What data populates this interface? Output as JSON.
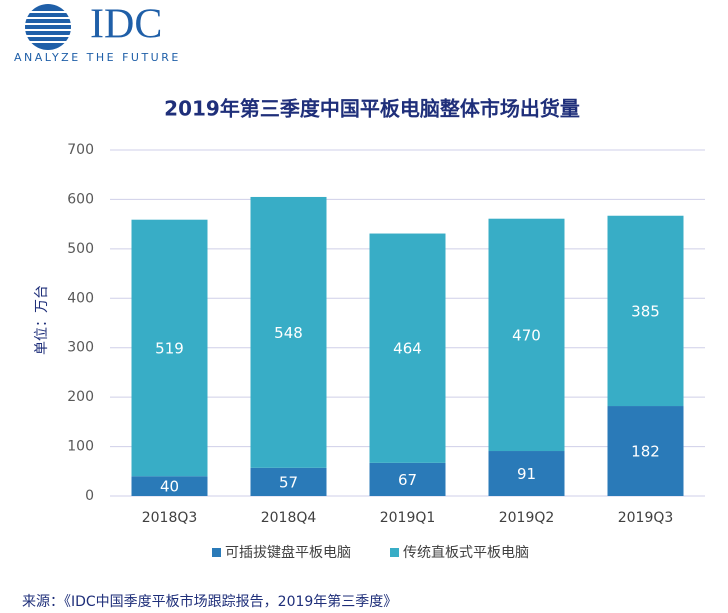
{
  "logo": {
    "name": "IDC",
    "tagline": "ANALYZE THE FUTURE"
  },
  "chart_data": {
    "type": "stacked-bar",
    "title": "2019年第三季度中国平板电脑整体市场出货量",
    "y_label": "单位：万台",
    "categories": [
      "2018Q3",
      "2018Q4",
      "2019Q1",
      "2019Q2",
      "2019Q3"
    ],
    "series": [
      {
        "name": "可插拔键盘平板电脑",
        "color": "#2a7ab8",
        "values": [
          40,
          57,
          67,
          91,
          182
        ]
      },
      {
        "name": "传统直板式平板电脑",
        "color": "#38adc6",
        "values": [
          519,
          548,
          464,
          470,
          385
        ]
      }
    ],
    "ylim": [
      0,
      700
    ],
    "yticks": [
      0,
      100,
      200,
      300,
      400,
      500,
      600,
      700
    ],
    "grid": true
  },
  "source": "来源：《IDC中国季度平板市场跟踪报告，2019年第三季度》"
}
